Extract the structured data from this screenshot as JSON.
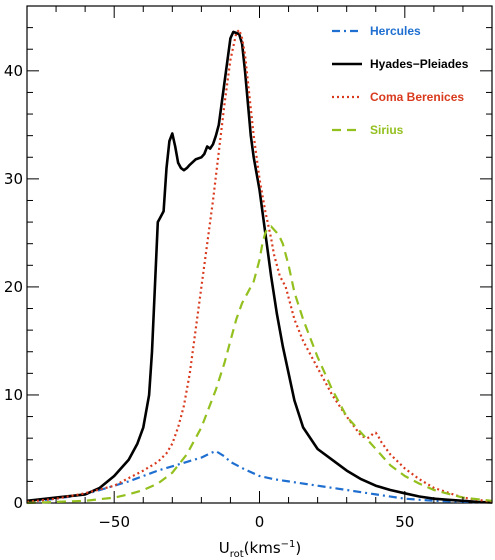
{
  "chart_data": {
    "type": "line",
    "title": "",
    "xlabel_main": "U",
    "xlabel_sub": "rot",
    "xlabel_unit": "(kms",
    "xlabel_sup": "−1",
    "xlabel_close": ")",
    "ylabel": "",
    "xlim": [
      -80,
      80
    ],
    "ylim": [
      0,
      46
    ],
    "xticks": [
      -50,
      0,
      50
    ],
    "xtick_labels": [
      "−50",
      "0",
      "50"
    ],
    "yticks": [
      0,
      10,
      20,
      30,
      40
    ],
    "ytick_labels": [
      "0",
      "10",
      "20",
      "30",
      "40"
    ],
    "legend_position": "top-right",
    "grid": false,
    "series": [
      {
        "name": "Hercules",
        "color": "#1f6fd0",
        "dash": "dashdot",
        "x": [
          -80,
          -70,
          -60,
          -50,
          -45,
          -40,
          -35,
          -30,
          -25,
          -20,
          -17,
          -15,
          -12,
          -10,
          -5,
          0,
          5,
          10,
          20,
          30,
          40,
          50,
          60,
          70,
          80
        ],
        "y": [
          0.1,
          0.4,
          0.8,
          1.6,
          2.0,
          2.5,
          3.0,
          3.4,
          3.8,
          4.2,
          4.6,
          4.8,
          4.3,
          3.8,
          3.1,
          2.5,
          2.2,
          2.0,
          1.6,
          1.2,
          0.8,
          0.4,
          0.2,
          0.1,
          0.05
        ]
      },
      {
        "name": "Hyades−Pleiades",
        "color": "#000000",
        "dash": "solid",
        "x": [
          -80,
          -70,
          -60,
          -55,
          -50,
          -45,
          -42,
          -40,
          -38,
          -37,
          -36,
          -35,
          -34,
          -33,
          -32,
          -31,
          -30,
          -29,
          -28,
          -27,
          -26,
          -25,
          -24,
          -22,
          -20,
          -19,
          -18,
          -17,
          -16,
          -15,
          -14,
          -13,
          -12,
          -11,
          -10,
          -9,
          -8,
          -7,
          -6,
          -5,
          -4,
          -3,
          -2,
          -1,
          0,
          2,
          4,
          6,
          8,
          10,
          12,
          15,
          20,
          25,
          30,
          35,
          40,
          45,
          50,
          55,
          60,
          65,
          70,
          75,
          80
        ],
        "y": [
          0.2,
          0.5,
          0.8,
          1.4,
          2.5,
          4.0,
          5.5,
          7.0,
          10.0,
          14.0,
          20.0,
          26.0,
          26.5,
          27.0,
          31.0,
          33.5,
          34.2,
          33.0,
          31.5,
          31.0,
          30.8,
          31.0,
          31.3,
          31.8,
          32.0,
          32.3,
          33.0,
          32.8,
          33.2,
          34.0,
          35.0,
          37.0,
          39.0,
          41.0,
          43.0,
          43.6,
          43.5,
          43.4,
          42.5,
          40.0,
          37.0,
          34.0,
          32.0,
          30.5,
          29.0,
          25.0,
          21.0,
          17.5,
          14.5,
          12.0,
          9.5,
          7.0,
          5.0,
          4.0,
          3.0,
          2.2,
          1.6,
          1.2,
          0.9,
          0.6,
          0.4,
          0.3,
          0.2,
          0.1,
          0.05
        ]
      },
      {
        "name": "Coma Berenices",
        "color": "#d93a1e",
        "dash": "dotted",
        "x": [
          -80,
          -70,
          -60,
          -50,
          -45,
          -40,
          -35,
          -32,
          -30,
          -28,
          -26,
          -24,
          -22,
          -20,
          -18,
          -16,
          -14,
          -12,
          -10,
          -8,
          -7,
          -6,
          -5,
          -4,
          -2,
          0,
          2,
          4,
          5,
          6,
          7,
          8,
          9,
          10,
          12,
          15,
          20,
          25,
          30,
          35,
          37,
          38,
          39,
          40,
          41,
          42,
          45,
          50,
          55,
          60,
          70,
          80
        ],
        "y": [
          0.1,
          0.4,
          0.9,
          1.6,
          2.3,
          3.0,
          3.8,
          4.6,
          5.5,
          7.0,
          9.0,
          12.0,
          16.0,
          20.0,
          24.0,
          28.0,
          32.5,
          37.0,
          41.0,
          43.5,
          43.8,
          43.0,
          41.5,
          39.0,
          34.0,
          30.0,
          27.0,
          24.5,
          23.0,
          22.0,
          21.0,
          20.5,
          20.0,
          19.0,
          17.0,
          15.0,
          12.5,
          10.0,
          8.0,
          6.2,
          6.0,
          6.1,
          6.4,
          6.5,
          6.1,
          5.6,
          4.5,
          3.2,
          2.2,
          1.4,
          0.5,
          0.1
        ]
      },
      {
        "name": "Sirius",
        "color": "#93c01f",
        "dash": "dashed",
        "x": [
          -80,
          -70,
          -60,
          -50,
          -45,
          -40,
          -35,
          -30,
          -25,
          -20,
          -15,
          -12,
          -10,
          -8,
          -6,
          -4,
          -2,
          0,
          1,
          2,
          3,
          4,
          5,
          6,
          7,
          8,
          10,
          12,
          15,
          20,
          25,
          30,
          35,
          40,
          45,
          50,
          55,
          60,
          70,
          80
        ],
        "y": [
          0.0,
          0.1,
          0.2,
          0.5,
          0.8,
          1.2,
          1.8,
          2.8,
          4.5,
          7.0,
          10.5,
          13.0,
          15.0,
          17.0,
          18.5,
          19.5,
          20.5,
          22.5,
          24.0,
          25.0,
          25.5,
          25.6,
          25.3,
          25.0,
          24.6,
          24.0,
          22.0,
          19.5,
          17.0,
          13.5,
          10.5,
          8.0,
          6.5,
          5.0,
          3.5,
          2.5,
          1.8,
          1.2,
          0.5,
          0.2
        ]
      }
    ]
  }
}
